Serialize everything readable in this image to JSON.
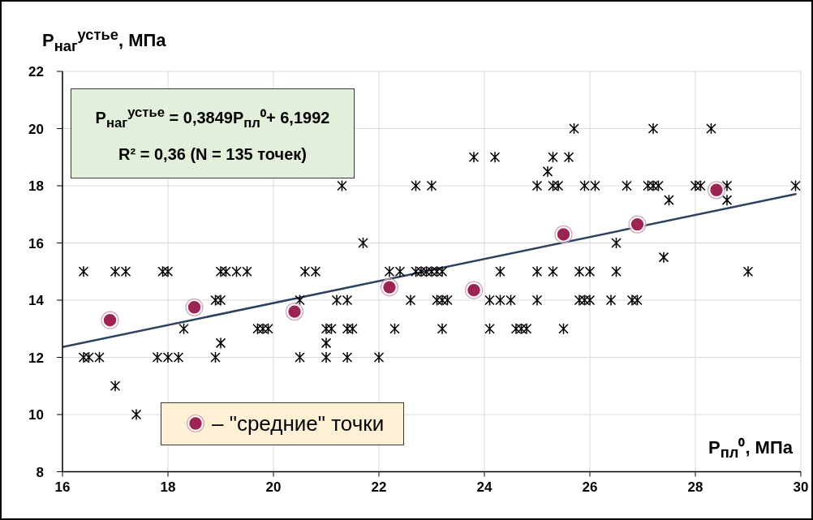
{
  "chart_data": {
    "type": "scatter",
    "xlabel": "P$_{пл}$⁰, МПа",
    "ylabel": "P$_{наг}$$^{устье}$, МПа",
    "annotations": [
      "P$_{наг}$$^{устье}$ = 0,3849P$_{пл}$⁰+ 6,1992",
      "R² = 0,36 (N = 135 точек)"
    ],
    "xlim": [
      16,
      30
    ],
    "xticks": [
      16,
      18,
      20,
      22,
      24,
      26,
      28,
      30
    ],
    "ylim": [
      8,
      22
    ],
    "yticks": [
      8,
      10,
      12,
      14,
      16,
      18,
      20,
      22
    ],
    "grid": true,
    "legend": "bottom left",
    "series": [
      {
        "color": "#000000",
        "marker": "cross",
        "x": [
          25.7,
          27.2,
          28.3,
          23.8,
          24.2,
          25.3,
          25.6,
          25.2,
          21.3,
          22.7,
          23.0,
          25.0,
          25.3,
          25.4,
          25.9,
          26.1,
          26.7,
          27.1,
          27.2,
          27.3,
          28.0,
          28.1,
          28.6,
          29.9,
          27.5,
          28.6,
          21.7,
          26.5,
          27.4,
          16.4,
          17.0,
          17.2,
          17.9,
          18.0,
          19.0,
          19.1,
          19.3,
          19.5,
          20.6,
          20.8,
          22.2,
          22.4,
          22.7,
          22.8,
          22.9,
          23.0,
          23.1,
          23.2,
          24.3,
          25.0,
          25.3,
          25.8,
          26.0,
          26.5,
          29.0,
          18.9,
          19.0,
          20.5,
          21.2,
          21.4,
          22.6,
          23.1,
          23.2,
          23.3,
          24.1,
          24.3,
          24.5,
          25.0,
          25.8,
          25.9,
          26.0,
          26.4,
          26.8,
          26.9,
          18.3,
          19.7,
          19.8,
          19.9,
          21.0,
          21.1,
          21.4,
          21.5,
          22.3,
          23.2,
          24.1,
          24.6,
          24.7,
          24.8,
          25.5,
          19.0,
          21.0,
          16.4,
          16.5,
          16.7,
          17.8,
          18.0,
          18.2,
          18.9,
          20.5,
          21.0,
          21.4,
          22.0,
          17.0,
          17.4
        ],
        "values": [
          20,
          20,
          20,
          19,
          19,
          19,
          19,
          18.5,
          18,
          18,
          18,
          18,
          18,
          18,
          18,
          18,
          18,
          18,
          18,
          18,
          18,
          18,
          18,
          18,
          17.5,
          17.5,
          16,
          16,
          15.5,
          15,
          15,
          15,
          15,
          15,
          15,
          15,
          15,
          15,
          15,
          15,
          15,
          15,
          15,
          15,
          15,
          15,
          15,
          15,
          15,
          15,
          15,
          15,
          15,
          15,
          15,
          14,
          14,
          14,
          14,
          14,
          14,
          14,
          14,
          14,
          14,
          14,
          14,
          14,
          14,
          14,
          14,
          14,
          14,
          14,
          13,
          13,
          13,
          13,
          13,
          13,
          13,
          13,
          13,
          13,
          13,
          13,
          13,
          13,
          13,
          12.5,
          12.5,
          12,
          12,
          12,
          12,
          12,
          12,
          12,
          12,
          12,
          12,
          12,
          11,
          10
        ]
      },
      {
        "type": "line",
        "color": "#2d4160",
        "x": [
          16,
          29.9
        ],
        "values": [
          12.36,
          17.71
        ]
      },
      {
        "name": "– \"средние\" точки",
        "color": "#9c2452",
        "marker": "circle",
        "x": [
          16.9,
          18.5,
          20.4,
          22.2,
          23.8,
          25.5,
          26.9,
          28.4
        ],
        "values": [
          13.3,
          13.75,
          13.6,
          14.45,
          14.35,
          16.3,
          16.65,
          17.85
        ]
      }
    ]
  }
}
